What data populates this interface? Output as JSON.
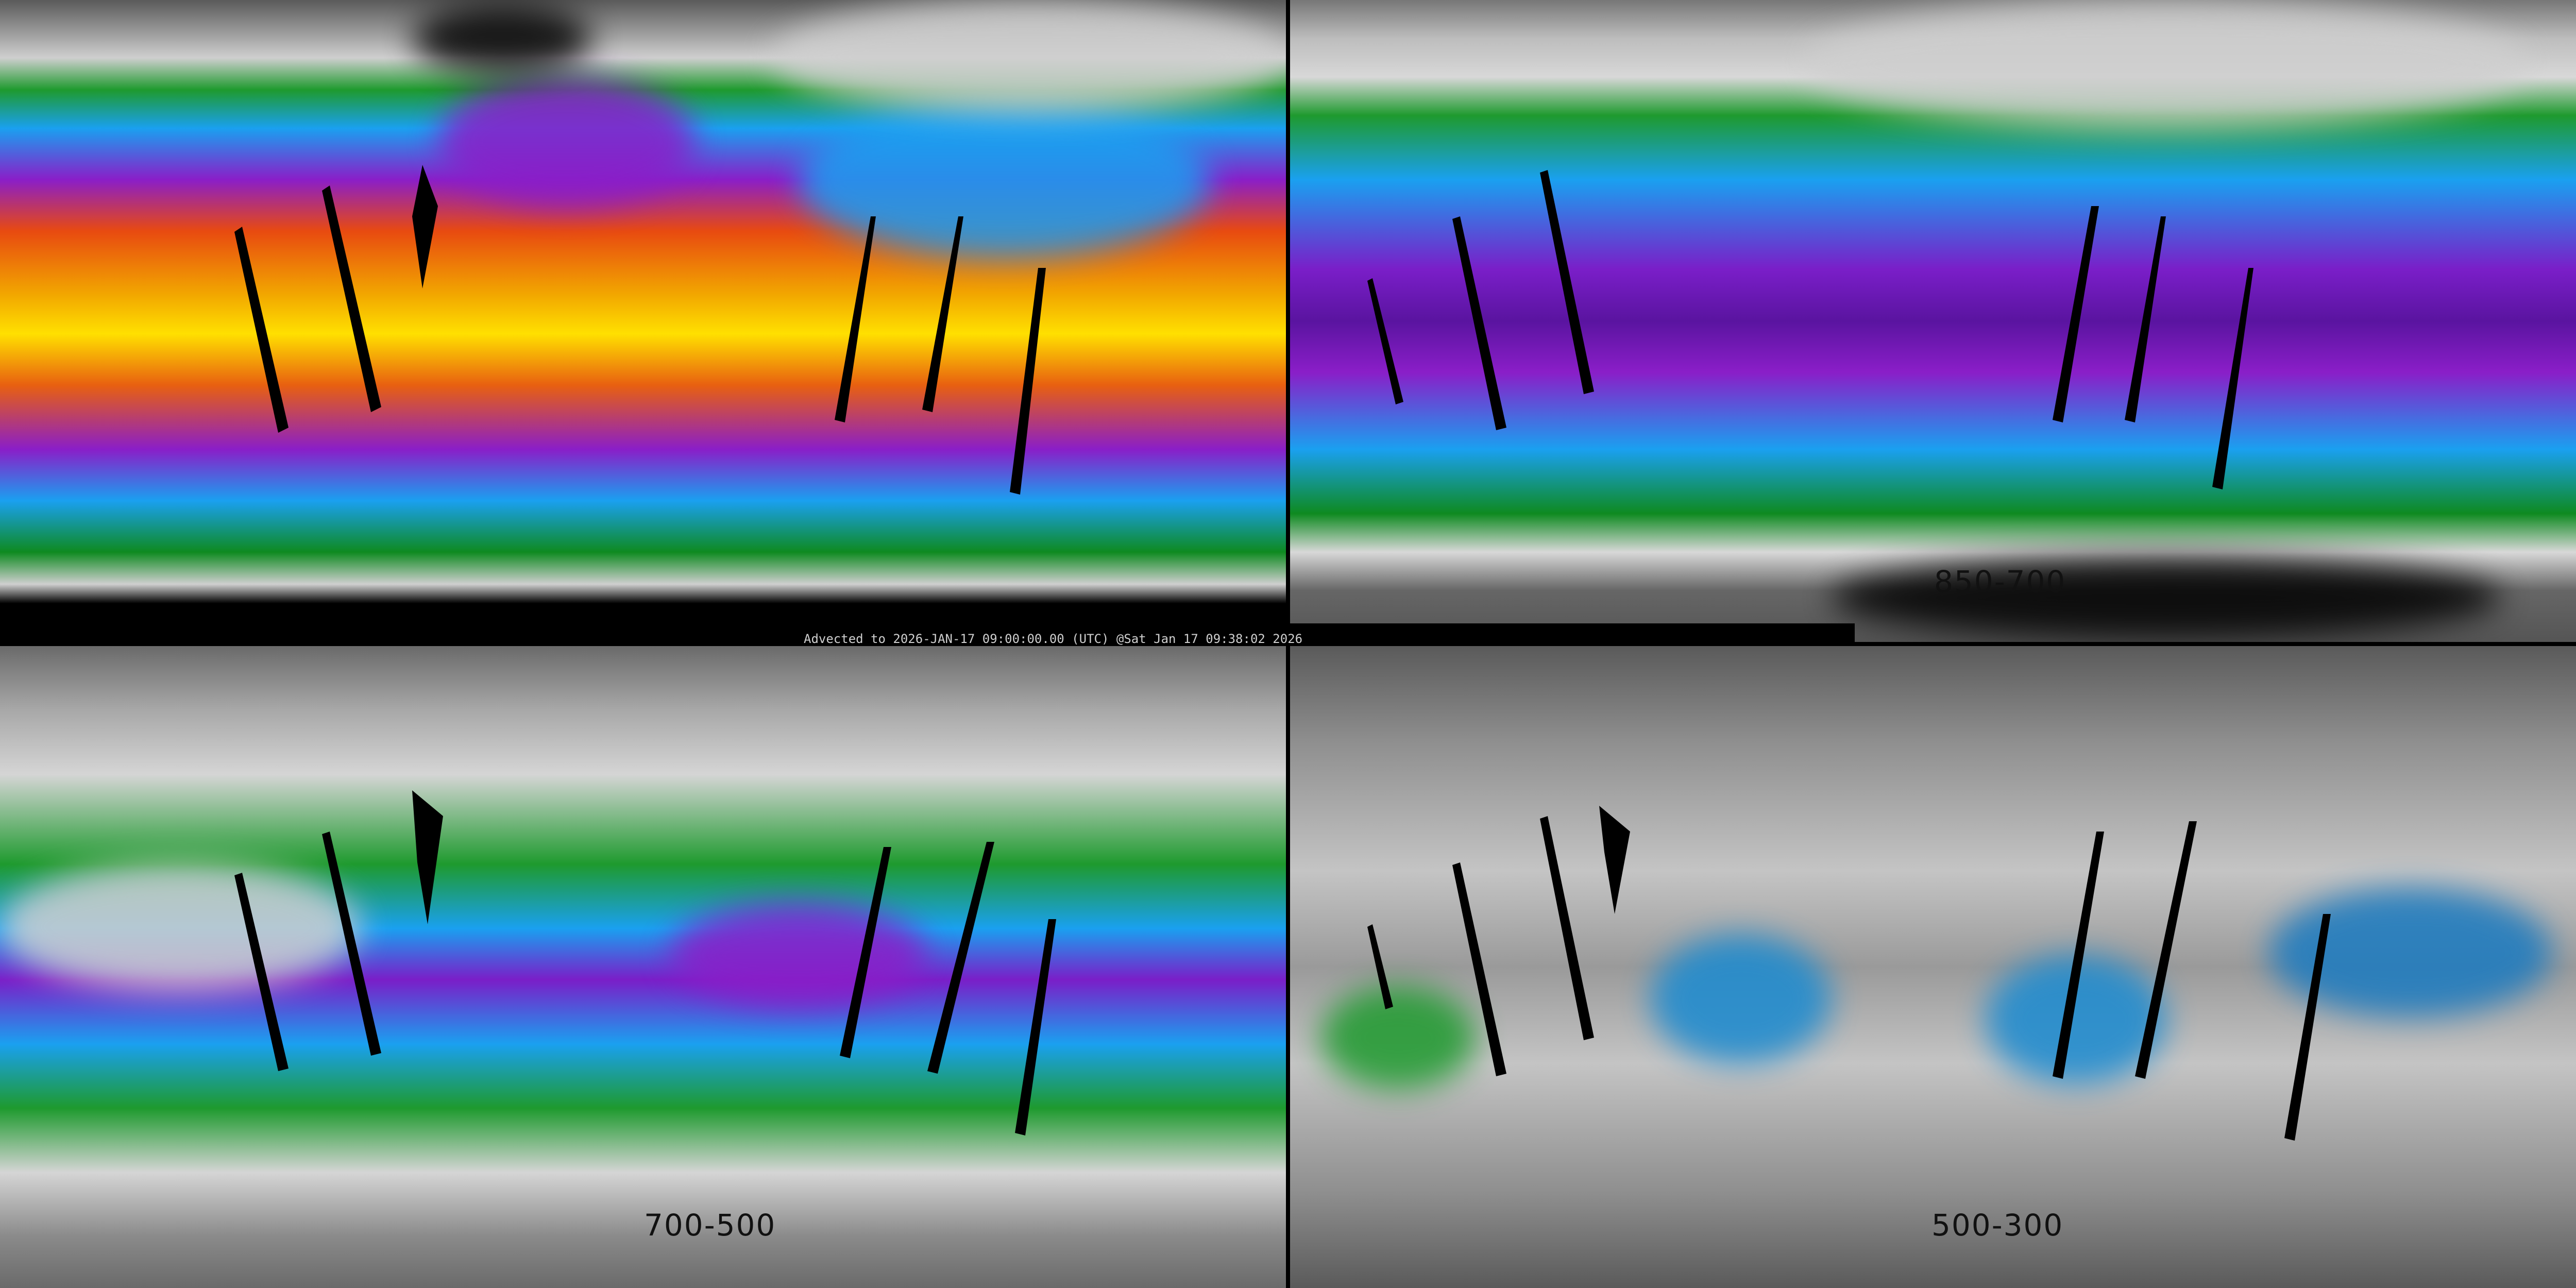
{
  "panels": [
    {
      "id": "p1",
      "layer_label": ""
    },
    {
      "id": "p2",
      "layer_label": "850-700"
    },
    {
      "id": "p3",
      "layer_label": "700-500"
    },
    {
      "id": "p4",
      "layer_label": "500-300"
    }
  ],
  "caption": "Advected to 2026-JAN-17 09:00:00.00 (UTC) @Sat Jan 17 09:38:02 2026",
  "colors": {
    "yellow": "#ffe000",
    "orange": "#e84a10",
    "purple": "#8a1ec8",
    "blue": "#1aa0f0",
    "green": "#1e9a2e",
    "grey": "#cfcfcf",
    "no_data": "#000000"
  }
}
